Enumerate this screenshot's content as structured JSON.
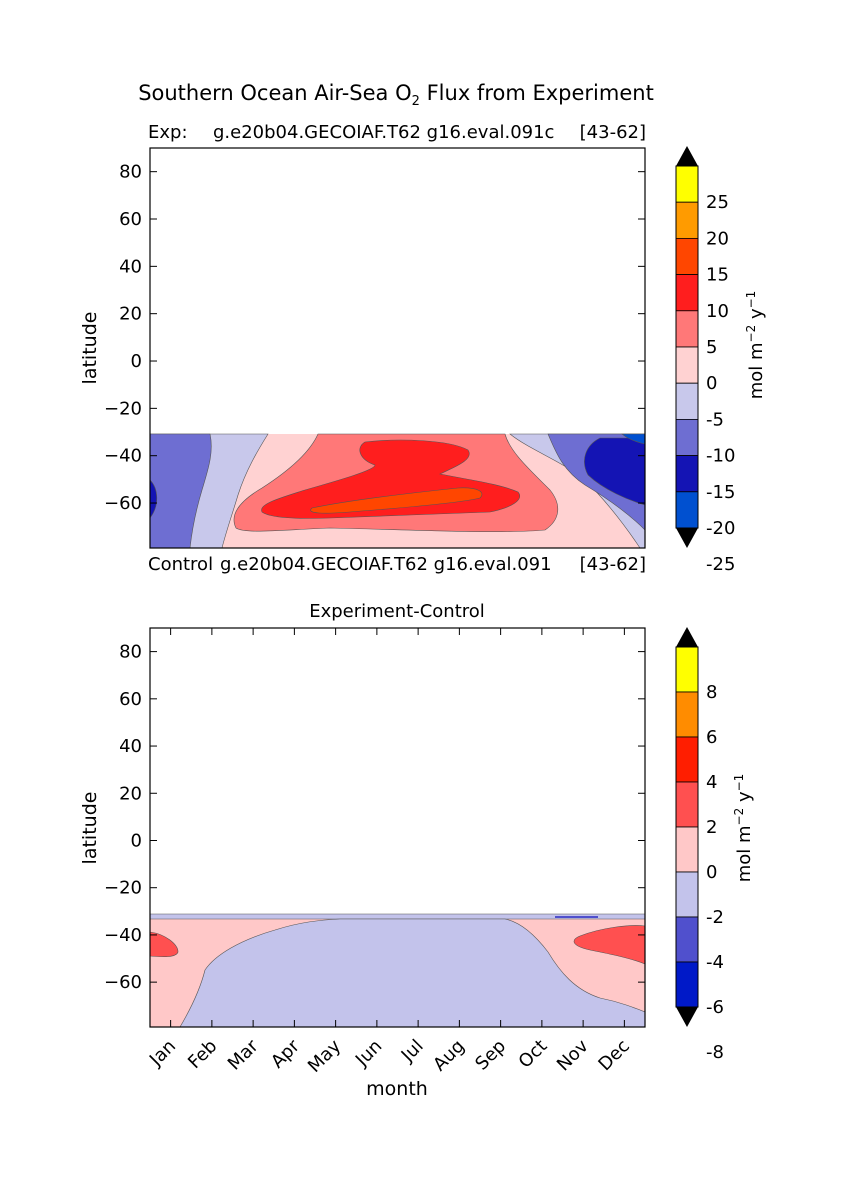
{
  "figure": {
    "title": "Southern Ocean Air-Sea O",
    "title_sub": "2",
    "title_tail": " Flux from Experiment"
  },
  "chart_data": [
    {
      "type": "heatmap",
      "title_left": "Exp:",
      "title_mid": "g.e20b04.GECOIAF.T62 g16.eval.091c",
      "title_right": "[43-62]",
      "footer_left": "Control",
      "footer_mid": "g.e20b04.GECOIAF.T62 g16.eval.091",
      "footer_right": "[43-62]",
      "ylabel": "latitude",
      "xlim": [
        0.5,
        12.5
      ],
      "ylim": [
        -79,
        90
      ],
      "yticks": [
        80,
        60,
        40,
        20,
        0,
        -20,
        -40,
        -60
      ],
      "ytick_labels": [
        "80",
        "60",
        "40",
        "20",
        "0",
        "−20",
        "−40",
        "−60"
      ],
      "data_lat_top": -32,
      "levels": [
        -30,
        -25,
        -20,
        -15,
        -10,
        -5,
        0,
        5,
        10,
        15,
        20,
        25,
        30
      ],
      "colors": [
        "#00ffff",
        "#00a8e8",
        "#0050d0",
        "#1414b4",
        "#6e6ed2",
        "#c8c8eb",
        "#ffd2d2",
        "#ff7878",
        "#ff1e1e",
        "#ff4600",
        "#ff9b00",
        "#ffff00"
      ],
      "colorbar": {
        "label": "mol m",
        "label_exp": "−2",
        "label_mid": " y",
        "label_exp2": "−1",
        "ticks": [
          "25",
          "20",
          "15",
          "10",
          "5",
          "0",
          "-5",
          "-10",
          "-15",
          "-20",
          "-25"
        ]
      },
      "contour_bands": [
        {
          "name": "band-neg10",
          "lat": -32,
          "months_from": 0.5,
          "months_to": 1.8,
          "value": -10
        },
        {
          "name": "band-pos5",
          "lat": -45,
          "months_from": 4.0,
          "months_to": 9.0,
          "value": 5
        },
        {
          "name": "band-pos10",
          "lat": -40,
          "months_from": 5.5,
          "months_to": 8.0,
          "value": 10
        },
        {
          "name": "band-pos15",
          "lat": -61,
          "months_from": 6.0,
          "months_to": 8.5,
          "value": 15
        },
        {
          "name": "band-neg15",
          "lat": -50,
          "months_from": 11.2,
          "months_to": 12.5,
          "value": -15
        }
      ]
    },
    {
      "type": "heatmap",
      "title": "Experiment-Control",
      "ylabel": "latitude",
      "xlabel": "month",
      "xlim": [
        0.5,
        12.5
      ],
      "ylim": [
        -79,
        90
      ],
      "categories": [
        "Jan",
        "Feb",
        "Mar",
        "Apr",
        "May",
        "Jun",
        "Jul",
        "Aug",
        "Sep",
        "Oct",
        "Nov",
        "Dec"
      ],
      "yticks": [
        80,
        60,
        40,
        20,
        0,
        -20,
        -40,
        -60
      ],
      "ytick_labels": [
        "80",
        "60",
        "40",
        "20",
        "0",
        "−20",
        "−40",
        "−60"
      ],
      "data_lat_top": -32,
      "levels": [
        -10,
        -8,
        -6,
        -4,
        -2,
        0,
        2,
        4,
        6,
        8,
        10
      ],
      "colors": [
        "#00ffff",
        "#0096e1",
        "#0019c8",
        "#5050cd",
        "#c3c3eb",
        "#ffc8c8",
        "#ff5050",
        "#ff1e00",
        "#ff8c00",
        "#ffff00"
      ],
      "colorbar": {
        "label": "mol m",
        "label_exp": "−2",
        "label_mid": " y",
        "label_exp2": "−1",
        "ticks": [
          "8",
          "6",
          "4",
          "2",
          "0",
          "-2",
          "-4",
          "-6",
          "-8"
        ]
      }
    }
  ]
}
